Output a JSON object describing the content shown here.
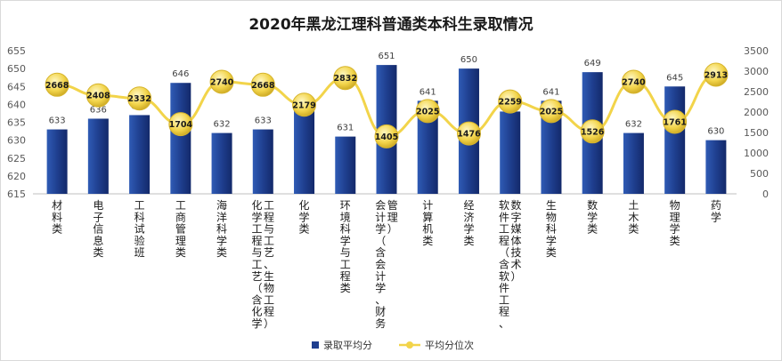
{
  "chart_data": {
    "type": "bar",
    "title": "2020年黑龙江理科普通类本科生录取情况",
    "categories": [
      "材料类",
      "电子信息类",
      "工科试验班",
      "工商管理类",
      "海洋科学类",
      [
        "化学工程与工艺（含化学",
        "工程与工艺、生物工程）"
      ],
      "化学类",
      "环境科学与工程类",
      [
        "会计学（含会计学、财务",
        "管理）"
      ],
      "计算机类",
      "经济学类",
      [
        "软件工程（含软件工程、",
        "数字媒体技术）"
      ],
      "生物科学类",
      "数学类",
      "土木类",
      "物理学类",
      "药学"
    ],
    "series": [
      {
        "name": "录取平均分",
        "type": "bar",
        "axis": "left",
        "color": "#1f3f8f",
        "values": [
          633,
          636,
          637,
          646,
          632,
          633,
          639,
          631,
          651,
          641,
          650,
          638,
          641,
          649,
          632,
          645,
          630
        ]
      },
      {
        "name": "平均分位次",
        "type": "line",
        "axis": "right",
        "color": "#f2d44a",
        "values": [
          2668,
          2408,
          2332,
          1704,
          2740,
          2668,
          2179,
          2832,
          1405,
          2025,
          1476,
          2259,
          2025,
          1526,
          2740,
          1761,
          2913
        ]
      }
    ],
    "y_left": {
      "min": 615,
      "max": 655,
      "ticks": [
        615,
        620,
        625,
        630,
        635,
        640,
        645,
        650,
        655
      ]
    },
    "y_right": {
      "min": 0,
      "max": 3500,
      "ticks": [
        0,
        500,
        1000,
        1500,
        2000,
        2500,
        3000,
        3500
      ]
    },
    "grid": false,
    "legend_position": "bottom"
  }
}
